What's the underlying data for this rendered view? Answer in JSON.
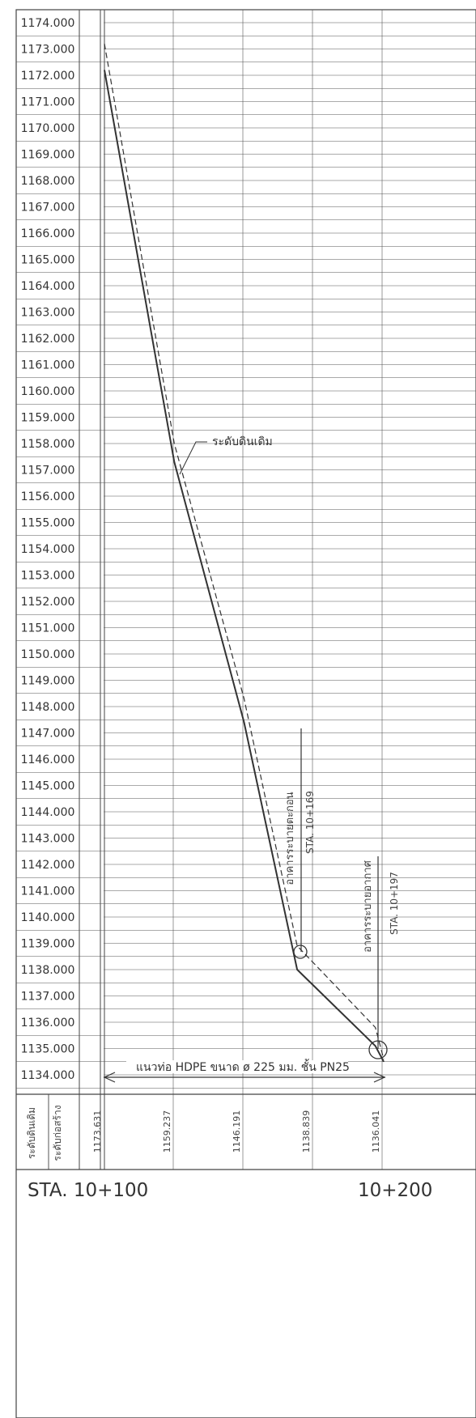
{
  "elevation_labels": [
    "1174.000",
    "1173.000",
    "1172.000",
    "1171.000",
    "1170.000",
    "1169.000",
    "1168.000",
    "1167.000",
    "1166.000",
    "1165.000",
    "1164.000",
    "1163.000",
    "1162.000",
    "1161.000",
    "1160.000",
    "1159.000",
    "1158.000",
    "1157.000",
    "1156.000",
    "1155.000",
    "1154.000",
    "1153.000",
    "1152.000",
    "1151.000",
    "1150.000",
    "1149.000",
    "1148.000",
    "1147.000",
    "1146.000",
    "1145.000",
    "1144.000",
    "1143.000",
    "1142.000",
    "1141.000",
    "1140.000",
    "1139.000",
    "1138.000",
    "1137.000",
    "1136.000",
    "1135.000",
    "1134.000"
  ],
  "row_headers": {
    "ground_level": "ระดับดินเดิม",
    "construction_level": "ระดับก่อสร้าง"
  },
  "level_values": [
    "1173.631",
    "1159.237",
    "1146.191",
    "1138.839",
    "1136.041"
  ],
  "annotations": {
    "ground_line": "ระดับดินเดิม",
    "structure_1_name": "อาคารระบายตะกอน",
    "structure_1_station": "STA. 10+169",
    "structure_2_name": "อาคารระบายอากาศ",
    "structure_2_station": "STA. 10+197",
    "pipe_label": "แนวท่อ HDPE ขนาด ø 225 มม. ชั้น PN25"
  },
  "stations": {
    "start": "STA. 10+100",
    "end": "10+200"
  },
  "chart_data": {
    "type": "line",
    "elevation_range": [
      1134,
      1174
    ],
    "series": [
      {
        "style": "dashed",
        "points": [
          [
            10100,
            1173.2
          ],
          [
            10125,
            1158.0
          ],
          [
            10150,
            1148.3
          ],
          [
            10169,
            1138.9
          ],
          [
            10197,
            1135.8
          ],
          [
            10200,
            1134.6
          ]
        ]
      },
      {
        "style": "solid",
        "points": [
          [
            10100,
            1172.2
          ],
          [
            10125,
            1157.3
          ],
          [
            10150,
            1147.4
          ],
          [
            10169,
            1138.0
          ],
          [
            10197,
            1135.1
          ],
          [
            10200,
            1134.5
          ]
        ]
      }
    ]
  }
}
